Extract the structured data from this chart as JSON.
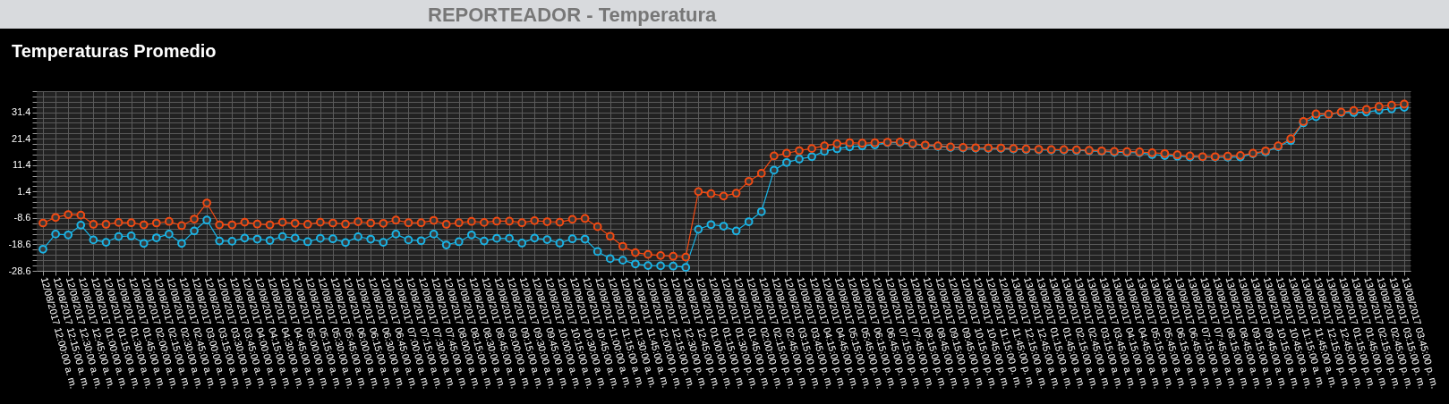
{
  "chart_data": {
    "type": "line",
    "title": "REPORTEADOR - Temperatura",
    "subtitle": "Temperaturas Promedio",
    "categories": [
      "12/08/2017 12:00:00 a. m.",
      "12/08/2017 12:15:00 a. m.",
      "12/08/2017 12:30:00 a. m.",
      "12/08/2017 12:45:00 a. m.",
      "12/08/2017 01:00:00 a. m.",
      "12/08/2017 01:15:00 a. m.",
      "12/08/2017 01:30:00 a. m.",
      "12/08/2017 01:45:00 a. m.",
      "12/08/2017 02:00:00 a. m.",
      "12/08/2017 02:15:00 a. m.",
      "12/08/2017 02:30:00 a. m.",
      "12/08/2017 02:45:00 a. m.",
      "12/08/2017 03:00:00 a. m.",
      "12/08/2017 03:15:00 a. m.",
      "12/08/2017 03:30:00 a. m.",
      "12/08/2017 03:45:00 a. m.",
      "12/08/2017 04:00:00 a. m.",
      "12/08/2017 04:15:00 a. m.",
      "12/08/2017 04:30:00 a. m.",
      "12/08/2017 04:45:00 a. m.",
      "12/08/2017 05:00:00 a. m.",
      "12/08/2017 05:15:00 a. m.",
      "12/08/2017 05:30:00 a. m.",
      "12/08/2017 05:45:00 a. m.",
      "12/08/2017 06:00:00 a. m.",
      "12/08/2017 06:15:00 a. m.",
      "12/08/2017 06:30:00 a. m.",
      "12/08/2017 06:45:00 a. m.",
      "12/08/2017 07:00:00 a. m.",
      "12/08/2017 07:15:00 a. m.",
      "12/08/2017 07:30:00 a. m.",
      "12/08/2017 07:45:00 a. m.",
      "12/08/2017 08:00:00 a. m.",
      "12/08/2017 08:15:00 a. m.",
      "12/08/2017 08:30:00 a. m.",
      "12/08/2017 08:45:00 a. m.",
      "12/08/2017 09:00:00 a. m.",
      "12/08/2017 09:15:00 a. m.",
      "12/08/2017 09:30:00 a. m.",
      "12/08/2017 09:45:00 a. m.",
      "12/08/2017 10:00:00 a. m.",
      "12/08/2017 10:15:00 a. m.",
      "12/08/2017 10:30:00 a. m.",
      "12/08/2017 10:45:00 a. m.",
      "12/08/2017 11:00:00 a. m.",
      "12/08/2017 11:15:00 a. m.",
      "12/08/2017 11:30:00 a. m.",
      "12/08/2017 11:45:00 a. m.",
      "12/08/2017 12:00:00 p. m.",
      "12/08/2017 12:15:00 p. m.",
      "12/08/2017 12:30:00 p. m.",
      "12/08/2017 12:45:00 p. m.",
      "12/08/2017 01:00:00 p. m.",
      "12/08/2017 01:15:00 p. m.",
      "12/08/2017 01:30:00 p. m.",
      "12/08/2017 01:45:00 p. m.",
      "12/08/2017 02:00:00 p. m.",
      "12/08/2017 02:15:00 p. m.",
      "12/08/2017 02:45:00 p. m.",
      "12/08/2017 03:15:00 p. m.",
      "12/08/2017 03:45:00 p. m.",
      "12/08/2017 04:15:00 p. m.",
      "12/08/2017 04:45:00 p. m.",
      "12/08/2017 05:15:00 p. m.",
      "12/08/2017 05:45:00 p. m.",
      "12/08/2017 06:15:00 p. m.",
      "12/08/2017 06:45:00 p. m.",
      "12/08/2017 07:15:00 p. m.",
      "12/08/2017 07:45:00 p. m.",
      "12/08/2017 08:15:00 p. m.",
      "12/08/2017 08:45:00 p. m.",
      "12/08/2017 09:15:00 p. m.",
      "12/08/2017 09:45:00 p. m.",
      "12/08/2017 10:15:00 p. m.",
      "12/08/2017 10:45:00 p. m.",
      "12/08/2017 11:15:00 p. m.",
      "12/08/2017 11:45:00 p. m.",
      "13/08/2017 12:15:00 a. m.",
      "13/08/2017 12:45:00 a. m.",
      "13/08/2017 01:15:00 a. m.",
      "13/08/2017 01:45:00 a. m.",
      "13/08/2017 02:15:00 a. m.",
      "13/08/2017 02:45:00 a. m.",
      "13/08/2017 03:15:00 a. m.",
      "13/08/2017 03:45:00 a. m.",
      "13/08/2017 04:15:00 a. m.",
      "13/08/2017 04:45:00 a. m.",
      "13/08/2017 05:15:00 a. m.",
      "13/08/2017 05:45:00 a. m.",
      "13/08/2017 06:15:00 a. m.",
      "13/08/2017 06:45:00 a. m.",
      "13/08/2017 07:15:00 a. m.",
      "13/08/2017 07:45:00 a. m.",
      "13/08/2017 08:15:00 a. m.",
      "13/08/2017 08:45:00 a. m.",
      "13/08/2017 09:15:00 a. m.",
      "13/08/2017 09:45:00 a. m.",
      "13/08/2017 10:15:00 a. m.",
      "13/08/2017 10:45:00 a. m.",
      "13/08/2017 11:15:00 a. m.",
      "13/08/2017 11:45:00 a. m.",
      "13/08/2017 12:15:00 p. m.",
      "13/08/2017 12:45:00 p. m.",
      "13/08/2017 01:15:00 p. m.",
      "13/08/2017 01:45:00 p. m.",
      "13/08/2017 02:15:00 p. m.",
      "13/08/2017 02:45:00 p. m.",
      "13/08/2017 03:15:00 p. m.",
      "13/08/2017 03:45:00 p. m."
    ],
    "series": [
      {
        "color": "#1ab4e6",
        "values": [
          -20.4,
          -14.7,
          -15.0,
          -11.3,
          -16.9,
          -17.8,
          -15.6,
          -15.4,
          -18.2,
          -16.1,
          -14.7,
          -18.2,
          -13.5,
          -9.4,
          -17.3,
          -17.4,
          -16.2,
          -16.6,
          -17.1,
          -15.6,
          -16.2,
          -17.6,
          -16.3,
          -16.5,
          -17.9,
          -15.7,
          -16.6,
          -17.8,
          -14.7,
          -16.9,
          -17.2,
          -14.7,
          -18.8,
          -17.6,
          -15.0,
          -17.3,
          -16.3,
          -16.3,
          -18.1,
          -16.2,
          -16.8,
          -18.1,
          -16.5,
          -16.6,
          -21.3,
          -24.0,
          -24.6,
          -26.0,
          -26.6,
          -26.7,
          -26.8,
          -27.3,
          -12.9,
          -11.1,
          -11.7,
          -13.5,
          -10.0,
          -6.2,
          9.5,
          12.4,
          13.7,
          14.6,
          16.6,
          17.6,
          18.3,
          18.7,
          19.1,
          19.9,
          19.9,
          19.4,
          18.8,
          18.5,
          18.1,
          17.9,
          17.8,
          17.7,
          17.7,
          17.5,
          17.3,
          17.2,
          17.1,
          17.1,
          17.0,
          16.8,
          16.6,
          16.3,
          16.2,
          16.1,
          15.4,
          15.0,
          14.8,
          14.5,
          14.5,
          14.4,
          14.4,
          14.5,
          15.7,
          16.4,
          18.4,
          20.7,
          27.4,
          29.7,
          30.6,
          31.3,
          31.3,
          31.5,
          32.2,
          32.7,
          33.3
        ]
      },
      {
        "color": "#f24a12",
        "values": [
          -10.5,
          -8.4,
          -7.3,
          -7.5,
          -11.0,
          -11.0,
          -10.3,
          -10.4,
          -11.2,
          -10.5,
          -9.9,
          -11.5,
          -9.0,
          -2.9,
          -11.2,
          -11.2,
          -10.2,
          -10.9,
          -11.2,
          -10.2,
          -10.6,
          -11.0,
          -10.2,
          -10.5,
          -10.9,
          -10.0,
          -10.5,
          -10.6,
          -9.4,
          -10.4,
          -10.4,
          -9.5,
          -11.0,
          -10.4,
          -9.9,
          -10.3,
          -9.8,
          -9.8,
          -10.4,
          -9.6,
          -10.0,
          -10.2,
          -9.1,
          -8.8,
          -11.9,
          -15.5,
          -19.3,
          -21.7,
          -22.4,
          -22.8,
          -23.1,
          -23.4,
          1.4,
          0.6,
          -0.3,
          0.8,
          5.3,
          8.3,
          14.9,
          15.9,
          16.9,
          17.7,
          18.7,
          19.5,
          19.9,
          19.7,
          19.9,
          20.1,
          20.2,
          19.6,
          19.0,
          18.7,
          18.3,
          18.1,
          18.0,
          17.9,
          17.9,
          17.7,
          17.5,
          17.4,
          17.3,
          17.3,
          17.2,
          17.0,
          16.8,
          16.6,
          16.5,
          16.4,
          16.1,
          15.8,
          15.3,
          14.9,
          14.6,
          14.6,
          14.8,
          15.1,
          15.9,
          16.8,
          18.7,
          21.4,
          27.9,
          30.8,
          30.7,
          31.5,
          32.1,
          32.5,
          33.6,
          34.1,
          34.5
        ]
      }
    ],
    "ylim": [
      -28.6,
      39.4
    ],
    "yticks": [
      -28.6,
      {
        "value": -26.6,
        "label": null
      },
      {
        "value": -24.6,
        "label": null
      },
      {
        "value": -22.6,
        "label": null
      },
      {
        "value": -20.6,
        "label": null
      },
      -18.6,
      {
        "value": -16.6,
        "label": null
      },
      {
        "value": -14.6,
        "label": null
      },
      {
        "value": -12.6,
        "label": null
      },
      {
        "value": -10.6,
        "label": null
      },
      -8.6,
      {
        "value": -6.6,
        "label": null
      },
      {
        "value": -4.6,
        "label": null
      },
      {
        "value": -2.6,
        "label": null
      },
      {
        "value": -0.6,
        "label": null
      },
      1.4,
      {
        "value": 3.4,
        "label": null
      },
      {
        "value": 5.4,
        "label": null
      },
      {
        "value": 7.4,
        "label": null
      },
      {
        "value": 9.4,
        "label": null
      },
      11.4,
      {
        "value": 13.4,
        "label": null
      },
      {
        "value": 15.4,
        "label": null
      },
      {
        "value": 17.4,
        "label": null
      },
      {
        "value": 19.4,
        "label": null
      },
      21.4,
      {
        "value": 23.4,
        "label": null
      },
      {
        "value": 25.4,
        "label": null
      },
      {
        "value": 27.4,
        "label": null
      },
      {
        "value": 29.4,
        "label": null
      },
      31.4,
      {
        "value": 33.4,
        "label": null
      },
      {
        "value": 35.4,
        "label": null
      },
      {
        "value": 37.4,
        "label": null
      },
      {
        "value": 39.4,
        "label": null
      }
    ],
    "grid": true,
    "marker": "circle"
  }
}
